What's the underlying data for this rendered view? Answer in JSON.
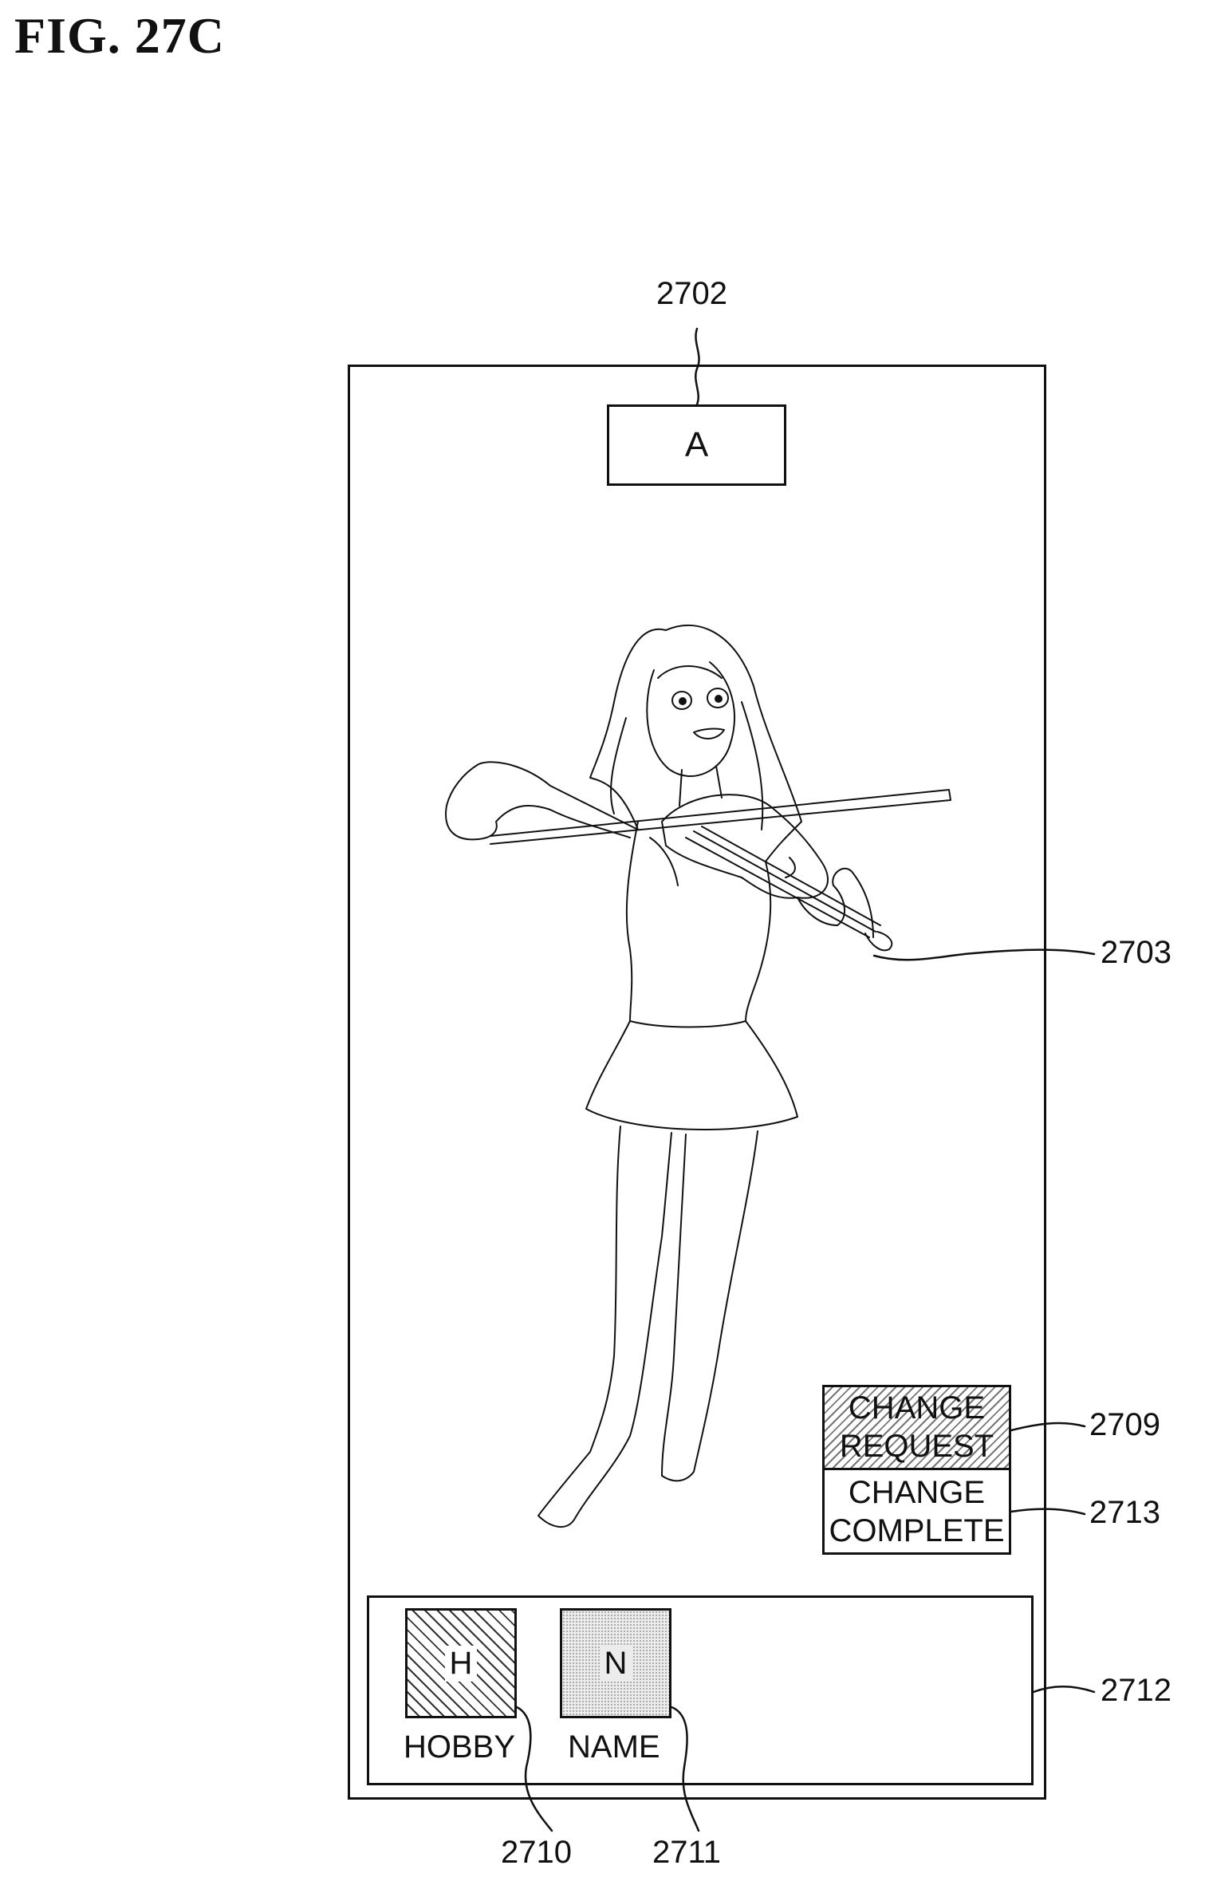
{
  "figure": {
    "title": "FIG. 27C"
  },
  "references": {
    "title_box": "2702",
    "character": "2703",
    "change_request": "2709",
    "change_complete": "2713",
    "tray": "2712",
    "hobby_tile": "2710",
    "name_tile": "2711"
  },
  "screen": {
    "title": "A",
    "change_request_lines": [
      "CHANGE",
      "REQUEST"
    ],
    "change_complete_lines": [
      "CHANGE",
      "COMPLETE"
    ],
    "tray": {
      "items": [
        {
          "letter": "H",
          "label": "HOBBY",
          "pattern": "diagonal-hatch"
        },
        {
          "letter": "N",
          "label": "NAME",
          "pattern": "dotted"
        }
      ]
    }
  },
  "colors": {
    "line": "#111111",
    "background": "#ffffff"
  }
}
